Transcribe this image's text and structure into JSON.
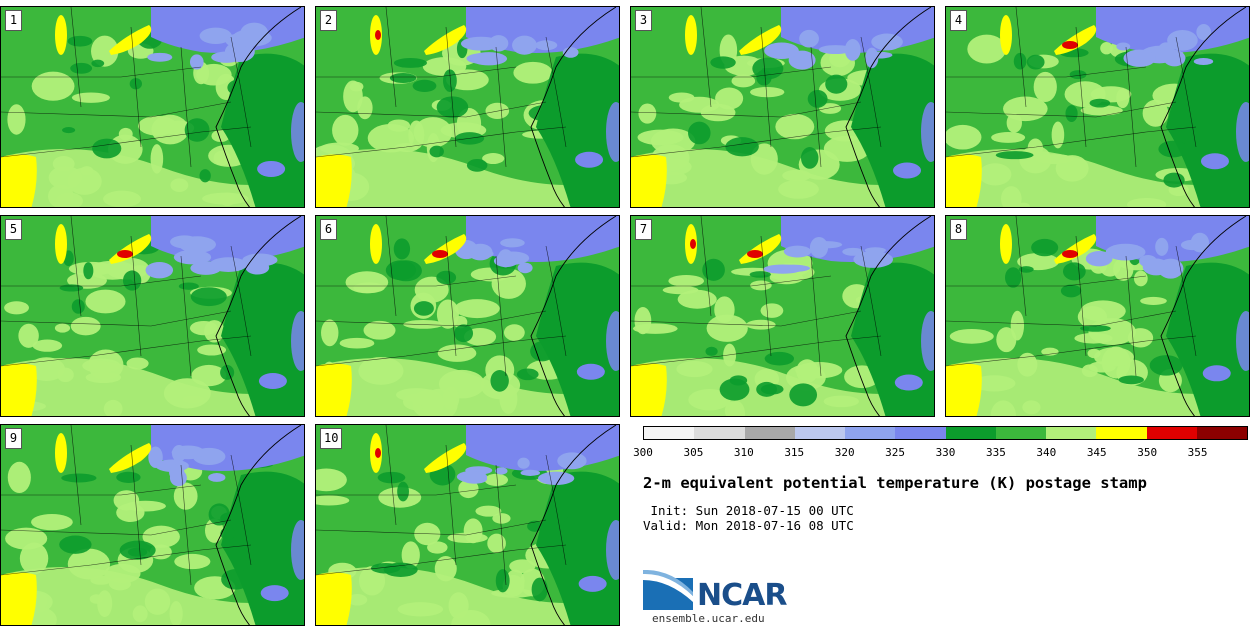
{
  "panels": [
    {
      "label": "1"
    },
    {
      "label": "2"
    },
    {
      "label": "3"
    },
    {
      "label": "4"
    },
    {
      "label": "5"
    },
    {
      "label": "6"
    },
    {
      "label": "7"
    },
    {
      "label": "8"
    },
    {
      "label": "9"
    },
    {
      "label": "10"
    }
  ],
  "colorbar": {
    "colors": [
      "#f4f4f4",
      "#dcdcdc",
      "#a8a8a8",
      "#bcc8ee",
      "#8fa4ee",
      "#7a86ee",
      "#0c9c2c",
      "#3cb83c",
      "#b2f07a",
      "#ffff00",
      "#e00000",
      "#8c0000"
    ],
    "ticks": [
      "300",
      "305",
      "310",
      "315",
      "320",
      "325",
      "330",
      "335",
      "340",
      "345",
      "350",
      "355"
    ]
  },
  "title": "2-m equivalent potential temperature (K) postage stamp",
  "init_line": " Init: Sun 2018-07-15 00 UTC",
  "valid_line": "Valid: Mon 2018-07-16 08 UTC",
  "logo": {
    "text": "NCAR",
    "url": "ensemble.ucar.edu"
  }
}
